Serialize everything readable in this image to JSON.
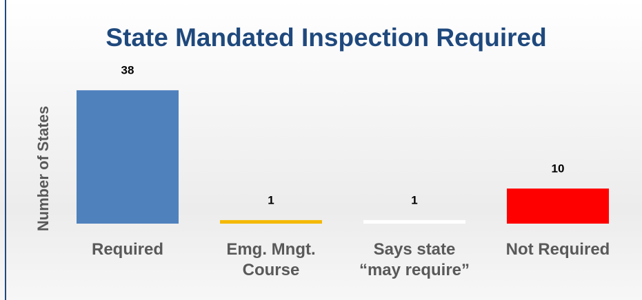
{
  "chart_data": {
    "type": "bar",
    "title": "State Mandated Inspection Required",
    "y_label": "Number of States",
    "categories": [
      "Required",
      "Emg. Mngt. Course",
      "Says state “may require”",
      "Not Required"
    ],
    "values": [
      38,
      1,
      1,
      10
    ],
    "colors": [
      "#4f81bd",
      "#f5b800",
      "#ffffff",
      "#ff0000"
    ],
    "ylim": [
      0,
      40
    ]
  }
}
